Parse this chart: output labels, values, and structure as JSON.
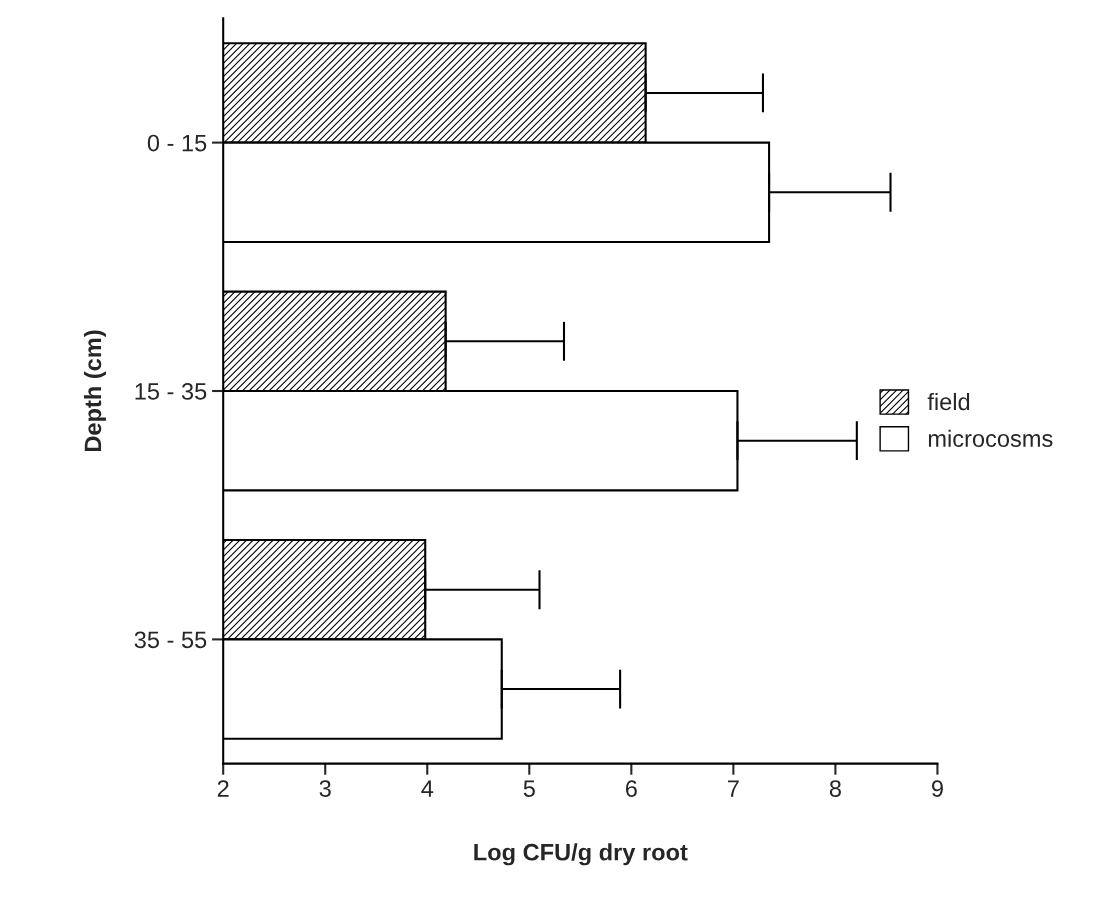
{
  "chart_data": {
    "type": "bar",
    "orientation": "horizontal",
    "xlabel": "Log CFU/g dry root",
    "ylabel": "Depth (cm)",
    "categories": [
      "0 - 15",
      "15 - 35",
      "35 - 55"
    ],
    "series": [
      {
        "name": "field",
        "color": "#000000",
        "values": [
          6.14,
          4.18,
          3.98
        ],
        "errors": [
          [
            6.14,
            7.29
          ],
          [
            4.18,
            5.34
          ],
          [
            3.98,
            5.1
          ]
        ]
      },
      {
        "name": "microcosms",
        "color": "#ffffff",
        "values": [
          7.35,
          7.04,
          4.73
        ],
        "errors": [
          [
            7.35,
            8.54
          ],
          [
            7.04,
            8.21
          ],
          [
            4.73,
            5.89
          ]
        ]
      }
    ],
    "xlim": [
      2,
      9
    ],
    "xticks": [
      2,
      3,
      4,
      5,
      6,
      7,
      8,
      9
    ],
    "grid": false,
    "legend": "right"
  }
}
